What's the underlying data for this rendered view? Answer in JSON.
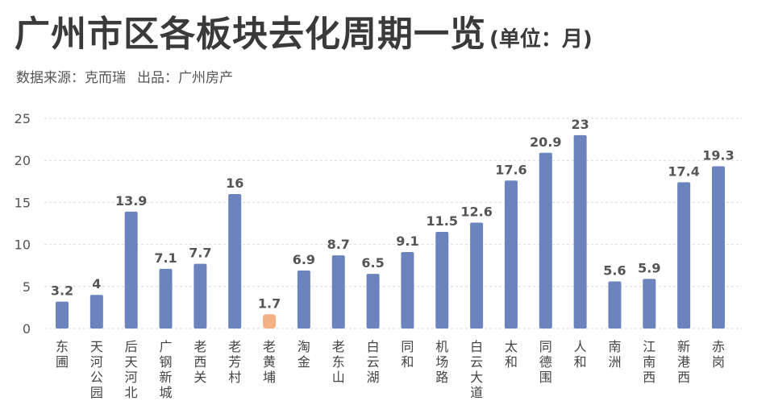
{
  "header": {
    "title": "广州市区各板块去化周期一览",
    "unit": "(单位：月)",
    "source": "数据来源：克而瑞",
    "producer": "出品：广州房产"
  },
  "colors": {
    "bar": "#6b84bd",
    "highlight_bar": "#f4b183",
    "highlight_label": "#c0392b",
    "grid": "#d9d9d9"
  },
  "chart_data": {
    "type": "bar",
    "categories": [
      "东圃",
      "天河公园",
      "后天河北",
      "广钢新城",
      "老西关",
      "老芳村",
      "老黄埔",
      "淘金",
      "老东山",
      "白云湖",
      "同和",
      "机场路",
      "白云大道",
      "太和",
      "同德围",
      "人和",
      "南洲",
      "江南西",
      "新港西",
      "赤岗"
    ],
    "values": [
      3.2,
      4,
      13.9,
      7.1,
      7.7,
      16,
      1.7,
      6.9,
      8.7,
      6.5,
      9.1,
      11.5,
      12.6,
      17.6,
      20.9,
      23,
      5.6,
      5.9,
      17.4,
      19.3
    ],
    "value_labels": [
      "3.2",
      "4",
      "13.9",
      "7.1",
      "7.7",
      "16",
      "1.7",
      "6.9",
      "8.7",
      "6.5",
      "9.1",
      "11.5",
      "12.6",
      "17.6",
      "20.9",
      "23",
      "5.6",
      "5.9",
      "17.4",
      "19.3"
    ],
    "highlight_index": 6,
    "y_ticks": [
      "0",
      "5",
      "10",
      "15",
      "20",
      "25"
    ],
    "ylim": [
      0,
      25
    ],
    "grid": true,
    "title": "广州市区各板块去化周期一览",
    "xlabel": "",
    "ylabel": ""
  }
}
